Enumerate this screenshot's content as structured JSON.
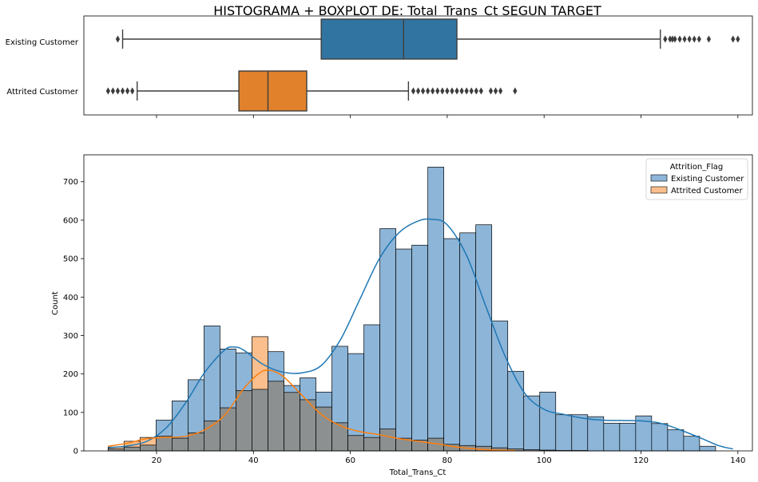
{
  "figure": {
    "suptitle": "HISTOGRAMA + BOXPLOT DE: Total_Trans_Ct SEGUN TARGET"
  },
  "colors": {
    "existing": "#1f77b4",
    "attrited": "#ff7f0e",
    "existing_box": "#3274a1",
    "attrited_box": "#e1812c",
    "existing_hist": "#8cb5d8",
    "attrited_hist": "#fbbf8d",
    "overlap_hist": "#8c9090"
  },
  "chart_data": [
    {
      "type": "boxplot",
      "xlim": [
        5,
        143
      ],
      "categories": [
        "Existing Customer",
        "Attrited Customer"
      ],
      "boxes": [
        {
          "category": "Existing Customer",
          "whisker_low": 13,
          "q1": 54,
          "median": 71,
          "q3": 82,
          "whisker_high": 124,
          "outliers": [
            12,
            125,
            126,
            126.5,
            127,
            128,
            129,
            130,
            131,
            132,
            134,
            139,
            140
          ]
        },
        {
          "category": "Attrited Customer",
          "whisker_low": 16,
          "q1": 37,
          "median": 43,
          "q3": 51,
          "whisker_high": 72,
          "outliers": [
            10,
            11,
            12,
            13,
            14,
            15,
            73,
            74,
            75,
            76,
            77,
            78,
            79,
            80,
            81,
            82,
            83,
            84,
            85,
            86,
            87,
            89,
            90,
            91,
            94
          ]
        }
      ],
      "xticks": [
        20,
        40,
        60,
        80,
        100,
        120,
        140
      ]
    },
    {
      "type": "histogram",
      "xlabel": "Total_Trans_Ct",
      "ylabel": "Count",
      "xlim": [
        5,
        143
      ],
      "ylim": [
        0,
        770
      ],
      "xticks": [
        20,
        40,
        60,
        80,
        100,
        120,
        140
      ],
      "yticks": [
        0,
        100,
        200,
        300,
        400,
        500,
        600,
        700
      ],
      "bin_start": 10,
      "bin_width": 3.3,
      "legend": {
        "title": "Attrition_Flag",
        "placement": "top-right",
        "entries": [
          "Existing Customer",
          "Attrited Customer"
        ]
      },
      "series": [
        {
          "name": "Existing Customer",
          "values": [
            5,
            10,
            15,
            80,
            130,
            185,
            325,
            265,
            255,
            160,
            258,
            170,
            190,
            153,
            272,
            253,
            328,
            578,
            525,
            535,
            738,
            552,
            567,
            588,
            338,
            207,
            143,
            153,
            94,
            94,
            89,
            72,
            72,
            91,
            71,
            55,
            38,
            12
          ],
          "kde": [
            [
              10,
              8
            ],
            [
              14,
              13
            ],
            [
              18,
              25
            ],
            [
              22,
              60
            ],
            [
              26,
              125
            ],
            [
              30,
              205
            ],
            [
              34,
              262
            ],
            [
              36,
              270
            ],
            [
              38,
              262
            ],
            [
              42,
              225
            ],
            [
              46,
              205
            ],
            [
              50,
              203
            ],
            [
              54,
              222
            ],
            [
              58,
              290
            ],
            [
              62,
              395
            ],
            [
              66,
              500
            ],
            [
              70,
              567
            ],
            [
              74,
              598
            ],
            [
              77,
              602
            ],
            [
              80,
              588
            ],
            [
              84,
              508
            ],
            [
              88,
              375
            ],
            [
              92,
              245
            ],
            [
              96,
              150
            ],
            [
              100,
              108
            ],
            [
              104,
              95
            ],
            [
              108,
              85
            ],
            [
              112,
              80
            ],
            [
              116,
              79
            ],
            [
              120,
              78
            ],
            [
              124,
              72
            ],
            [
              128,
              55
            ],
            [
              132,
              35
            ],
            [
              136,
              14
            ],
            [
              139,
              5
            ]
          ]
        },
        {
          "name": "Attrited Customer",
          "values": [
            10,
            25,
            35,
            38,
            33,
            47,
            78,
            112,
            157,
            297,
            181,
            152,
            133,
            114,
            73,
            40,
            35,
            57,
            33,
            28,
            33,
            17,
            14,
            12,
            8,
            5,
            3,
            2,
            1,
            1,
            0,
            0,
            0,
            0,
            0,
            0,
            0,
            0
          ],
          "kde": [
            [
              10,
              12
            ],
            [
              14,
              20
            ],
            [
              18,
              32
            ],
            [
              22,
              35
            ],
            [
              26,
              38
            ],
            [
              30,
              55
            ],
            [
              34,
              92
            ],
            [
              38,
              162
            ],
            [
              41,
              200
            ],
            [
              43,
              210
            ],
            [
              46,
              195
            ],
            [
              50,
              145
            ],
            [
              54,
              95
            ],
            [
              58,
              65
            ],
            [
              62,
              50
            ],
            [
              66,
              42
            ],
            [
              70,
              32
            ],
            [
              74,
              25
            ],
            [
              78,
              18
            ],
            [
              82,
              10
            ],
            [
              86,
              5
            ],
            [
              90,
              2
            ],
            [
              94,
              1
            ]
          ]
        }
      ]
    }
  ]
}
